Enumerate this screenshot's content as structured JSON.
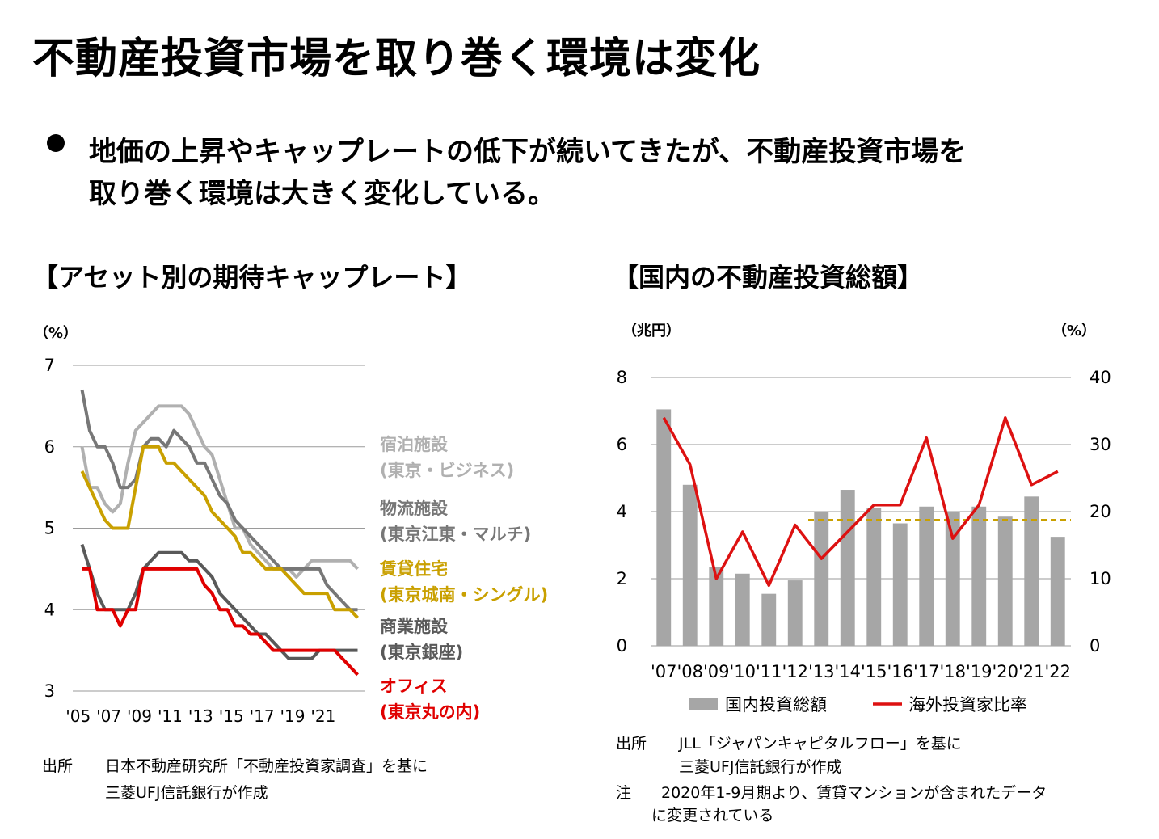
{
  "page": {
    "title": "不動産投資市場を取り巻く環境は変化",
    "bullet_lines": [
      "地価の上昇やキャップレートの低下が続いてきたが、不動産投資市場を",
      "取り巻く環境は大きく変化している。"
    ]
  },
  "colors": {
    "hotel": "#b0b0b0",
    "logistics": "#777777",
    "residential": "#c9a000",
    "retail": "#595959",
    "office": "#e00000",
    "bars": "#a6a6a6",
    "foreign_line": "#dd1111",
    "dashed_avg": "#c9a000"
  },
  "chart_data": [
    {
      "type": "line",
      "title": "【アセット別の期待キャップレート】",
      "ylabel": "（%）",
      "ylim": [
        3,
        7
      ],
      "yticks": [
        "7",
        "6",
        "5",
        "4",
        "3"
      ],
      "xticks": [
        "'05",
        "'07",
        "'09",
        "'11",
        "'13",
        "'15",
        "'17",
        "'19",
        "'21"
      ],
      "x_range": [
        2004.75,
        2023.75
      ],
      "series": [
        {
          "key": "hotel",
          "label_line1": "宿泊施設",
          "label_line2": "(東京・ビジネス)",
          "x": [
            2005.25,
            2005.75,
            2006.25,
            2006.75,
            2007.25,
            2007.75,
            2008.25,
            2008.75,
            2009.25,
            2009.75,
            2010.25,
            2010.75,
            2011.25,
            2011.75,
            2012.25,
            2012.75,
            2013.25,
            2013.75,
            2014.25,
            2014.75,
            2015.25,
            2015.75,
            2016.25,
            2016.75,
            2017.25,
            2017.75,
            2018.25,
            2018.75,
            2019.25,
            2019.75,
            2020.25,
            2020.75,
            2021.25,
            2021.75,
            2022.25,
            2022.75,
            2023.25
          ],
          "y": [
            6.0,
            5.5,
            5.5,
            5.3,
            5.2,
            5.3,
            5.8,
            6.2,
            6.3,
            6.4,
            6.5,
            6.5,
            6.5,
            6.5,
            6.4,
            6.2,
            6.0,
            5.9,
            5.6,
            5.3,
            5.0,
            5.0,
            4.8,
            4.7,
            4.6,
            4.5,
            4.5,
            4.5,
            4.4,
            4.5,
            4.6,
            4.6,
            4.6,
            4.6,
            4.6,
            4.6,
            4.5
          ]
        },
        {
          "key": "logistics",
          "label_line1": "物流施設",
          "label_line2": "(東京江東・マルチ)",
          "x": [
            2005.25,
            2005.75,
            2006.25,
            2006.75,
            2007.25,
            2007.75,
            2008.25,
            2008.75,
            2009.25,
            2009.75,
            2010.25,
            2010.75,
            2011.25,
            2011.75,
            2012.25,
            2012.75,
            2013.25,
            2013.75,
            2014.25,
            2014.75,
            2015.25,
            2015.75,
            2016.25,
            2016.75,
            2017.25,
            2017.75,
            2018.25,
            2018.75,
            2019.25,
            2019.75,
            2020.25,
            2020.75,
            2021.25,
            2021.75,
            2022.25,
            2022.75,
            2023.25
          ],
          "y": [
            6.7,
            6.2,
            6.0,
            6.0,
            5.8,
            5.5,
            5.5,
            5.6,
            6.0,
            6.1,
            6.1,
            6.0,
            6.2,
            6.1,
            6.0,
            5.8,
            5.8,
            5.6,
            5.4,
            5.3,
            5.1,
            5.0,
            4.9,
            4.8,
            4.7,
            4.6,
            4.5,
            4.5,
            4.5,
            4.5,
            4.5,
            4.5,
            4.3,
            4.2,
            4.1,
            4.0,
            4.0
          ]
        },
        {
          "key": "residential",
          "label_line1": "賃貸住宅",
          "label_line2": "(東京城南・シングル)",
          "x": [
            2005.25,
            2005.75,
            2006.25,
            2006.75,
            2007.25,
            2007.75,
            2008.25,
            2008.75,
            2009.25,
            2009.75,
            2010.25,
            2010.75,
            2011.25,
            2011.75,
            2012.25,
            2012.75,
            2013.25,
            2013.75,
            2014.25,
            2014.75,
            2015.25,
            2015.75,
            2016.25,
            2016.75,
            2017.25,
            2017.75,
            2018.25,
            2018.75,
            2019.25,
            2019.75,
            2020.25,
            2020.75,
            2021.25,
            2021.75,
            2022.25,
            2022.75,
            2023.25
          ],
          "y": [
            5.7,
            5.5,
            5.3,
            5.1,
            5.0,
            5.0,
            5.0,
            5.5,
            6.0,
            6.0,
            6.0,
            5.8,
            5.8,
            5.7,
            5.6,
            5.5,
            5.4,
            5.2,
            5.1,
            5.0,
            4.9,
            4.7,
            4.7,
            4.6,
            4.5,
            4.5,
            4.5,
            4.4,
            4.3,
            4.2,
            4.2,
            4.2,
            4.2,
            4.0,
            4.0,
            4.0,
            3.9
          ]
        },
        {
          "key": "retail",
          "label_line1": "商業施設",
          "label_line2": "(東京銀座)",
          "x": [
            2005.25,
            2005.75,
            2006.25,
            2006.75,
            2007.25,
            2007.75,
            2008.25,
            2008.75,
            2009.25,
            2009.75,
            2010.25,
            2010.75,
            2011.25,
            2011.75,
            2012.25,
            2012.75,
            2013.25,
            2013.75,
            2014.25,
            2014.75,
            2015.25,
            2015.75,
            2016.25,
            2016.75,
            2017.25,
            2017.75,
            2018.25,
            2018.75,
            2019.25,
            2019.75,
            2020.25,
            2020.75,
            2021.25,
            2021.75,
            2022.25,
            2022.75,
            2023.25
          ],
          "y": [
            4.8,
            4.5,
            4.2,
            4.0,
            4.0,
            4.0,
            4.0,
            4.2,
            4.5,
            4.6,
            4.7,
            4.7,
            4.7,
            4.7,
            4.6,
            4.6,
            4.5,
            4.4,
            4.2,
            4.1,
            4.0,
            3.9,
            3.8,
            3.7,
            3.7,
            3.6,
            3.5,
            3.4,
            3.4,
            3.4,
            3.4,
            3.5,
            3.5,
            3.5,
            3.5,
            3.5,
            3.5
          ]
        },
        {
          "key": "office",
          "label_line1": "オフィス",
          "label_line2": "(東京丸の内)",
          "x": [
            2005.25,
            2005.75,
            2006.25,
            2006.75,
            2007.25,
            2007.75,
            2008.25,
            2008.75,
            2009.25,
            2009.75,
            2010.25,
            2010.75,
            2011.25,
            2011.75,
            2012.25,
            2012.75,
            2013.25,
            2013.75,
            2014.25,
            2014.75,
            2015.25,
            2015.75,
            2016.25,
            2016.75,
            2017.25,
            2017.75,
            2018.25,
            2018.75,
            2019.25,
            2019.75,
            2020.25,
            2020.75,
            2021.25,
            2021.75,
            2022.25,
            2022.75,
            2023.25
          ],
          "y": [
            4.5,
            4.5,
            4.0,
            4.0,
            4.0,
            3.8,
            4.0,
            4.0,
            4.5,
            4.5,
            4.5,
            4.5,
            4.5,
            4.5,
            4.5,
            4.5,
            4.3,
            4.2,
            4.0,
            4.0,
            3.8,
            3.8,
            3.7,
            3.7,
            3.6,
            3.5,
            3.5,
            3.5,
            3.5,
            3.5,
            3.5,
            3.5,
            3.5,
            3.5,
            3.4,
            3.3,
            3.2
          ]
        }
      ],
      "source_label": "出所",
      "source_lines": [
        "日本不動産研究所「不動産投資家調査」を基に",
        "三菱UFJ信託銀行が作成"
      ]
    },
    {
      "type": "bar+line",
      "title": "【国内の不動産投資総額】",
      "ylabel_left": "（兆円）",
      "ylabel_right": "（%）",
      "ylim_left": [
        0,
        8
      ],
      "ylim_right": [
        0,
        40
      ],
      "yticks_left": [
        "8",
        "6",
        "4",
        "2",
        "0"
      ],
      "yticks_right": [
        "40",
        "30",
        "20",
        "10",
        "0"
      ],
      "categories": [
        "'07",
        "'08",
        "'09",
        "'10",
        "'11",
        "'12",
        "'13",
        "'14",
        "'15",
        "'16",
        "'17",
        "'18",
        "'19",
        "'20",
        "'21",
        "'22"
      ],
      "series": [
        {
          "key": "bars",
          "name": "国内投資総額",
          "axis": "left",
          "values": [
            7.05,
            4.8,
            2.35,
            2.15,
            1.55,
            1.95,
            4.0,
            4.65,
            4.1,
            3.65,
            4.15,
            4.0,
            4.15,
            3.85,
            4.45,
            3.25
          ]
        },
        {
          "key": "foreign_line",
          "name": "海外投資家比率",
          "axis": "right",
          "values": [
            34,
            27,
            10,
            17,
            9,
            18,
            13,
            17,
            21,
            21,
            31,
            16,
            21,
            34,
            24,
            26
          ]
        }
      ],
      "reference_line": {
        "axis": "right",
        "value": 18.8,
        "from_category": "'12",
        "to_category": "'22"
      },
      "source_label": "出所",
      "source_lines": [
        "JLL「ジャパンキャピタルフロー」を基に",
        "三菱UFJ信託銀行が作成"
      ],
      "note_label": "注",
      "note_lines": [
        "2020年1-9月期より、賃貸マンションが含まれたデータ",
        "に変更されている"
      ]
    }
  ]
}
